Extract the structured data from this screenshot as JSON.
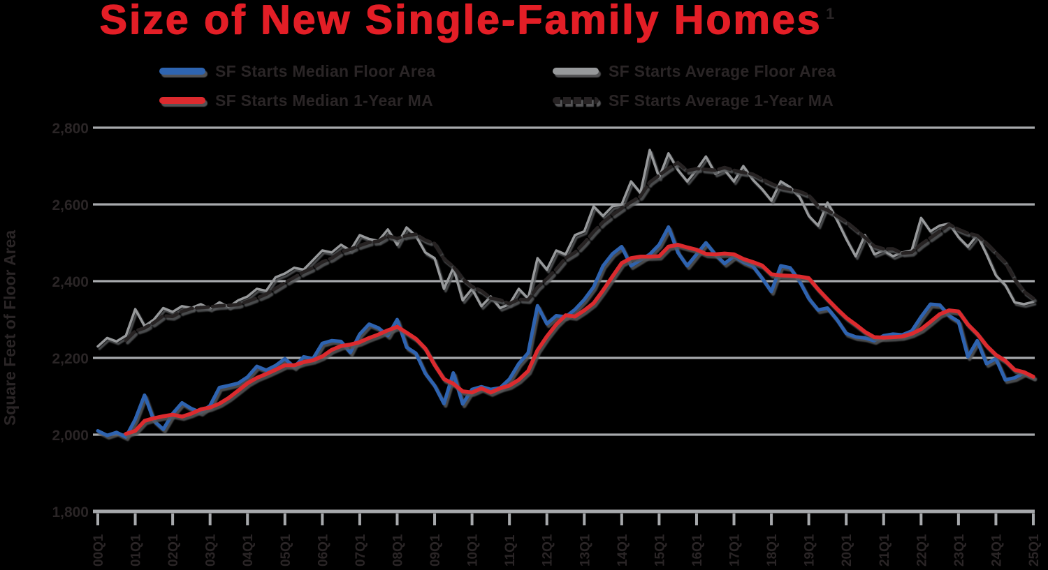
{
  "colors": {
    "background": "#000000",
    "title_red": "#e31e26",
    "median_blue": "#2e64b0",
    "median_ma_red": "#dc2a2e",
    "average_gray": "#97999b",
    "average_ma_dark": "#262223",
    "gridline_gray": "#a7a9ac",
    "axis_text_dark": "#2a2526"
  },
  "chart_data": {
    "type": "line",
    "title": "Size of New Single-Family Homes",
    "title_superscript": "1",
    "ylabel": "Square Feet of Floor Area",
    "ylim": [
      1800,
      2800
    ],
    "ytick_interval": 200,
    "ytick_values": [
      2800,
      2600,
      2400,
      2200,
      2000,
      1800
    ],
    "ytick_labels": [
      "2,800",
      "2,600",
      "2,400",
      "2,200",
      "2,000",
      "1,800"
    ],
    "grid": "horizontal",
    "legend_position": "top",
    "x_frequency": "quarterly",
    "x_start": "2000Q1",
    "x_end": "2025Q1",
    "xtick_labels": [
      "00Q1",
      "01Q1",
      "02Q1",
      "03Q1",
      "04Q1",
      "05Q1",
      "06Q1",
      "07Q1",
      "08Q1",
      "09Q1",
      "10Q1",
      "11Q1",
      "12Q1",
      "13Q1",
      "14Q1",
      "15Q1",
      "16Q1",
      "17Q1",
      "18Q1",
      "19Q1",
      "20Q1",
      "21Q1",
      "22Q1",
      "23Q1",
      "24Q1",
      "25Q1"
    ],
    "series": [
      {
        "name": "SF Starts Median Floor Area",
        "color": "#2e64b0",
        "line_style": "solid",
        "width": 5,
        "start_index": 0,
        "values": [
          2010,
          1998,
          2006,
          1994,
          2040,
          2103,
          2036,
          2014,
          2055,
          2083,
          2068,
          2058,
          2076,
          2123,
          2128,
          2134,
          2150,
          2178,
          2168,
          2180,
          2198,
          2176,
          2203,
          2198,
          2238,
          2245,
          2243,
          2214,
          2262,
          2288,
          2278,
          2258,
          2300,
          2228,
          2212,
          2160,
          2128,
          2081,
          2161,
          2080,
          2118,
          2125,
          2118,
          2122,
          2145,
          2185,
          2213,
          2336,
          2289,
          2310,
          2307,
          2326,
          2352,
          2385,
          2440,
          2471,
          2490,
          2440,
          2455,
          2470,
          2495,
          2541,
          2475,
          2440,
          2470,
          2500,
          2470,
          2446,
          2465,
          2450,
          2440,
          2408,
          2373,
          2440,
          2435,
          2400,
          2355,
          2325,
          2330,
          2300,
          2264,
          2255,
          2252,
          2245,
          2258,
          2262,
          2260,
          2270,
          2307,
          2340,
          2338,
          2310,
          2295,
          2203,
          2245,
          2185,
          2198,
          2143,
          2148,
          2161,
          2150
        ]
      },
      {
        "name": "SF Starts Median 1-Year MA",
        "color": "#dc2a2e",
        "line_style": "solid",
        "width": 5.5,
        "start_index": 3,
        "derived": "4-quarter moving average of SF Starts Median Floor Area",
        "values": [
          2002,
          2010,
          2036,
          2043,
          2048,
          2052,
          2047,
          2055,
          2066,
          2071,
          2081,
          2096,
          2115,
          2134,
          2148,
          2158,
          2169,
          2181,
          2181,
          2189,
          2194,
          2204,
          2221,
          2231,
          2235,
          2241,
          2252,
          2261,
          2272,
          2281,
          2266,
          2250,
          2225,
          2182,
          2145,
          2133,
          2113,
          2110,
          2121,
          2110,
          2121,
          2128,
          2143,
          2166,
          2220,
          2256,
          2287,
          2311,
          2308,
          2324,
          2343,
          2376,
          2412,
          2447,
          2460,
          2464,
          2464,
          2465,
          2490,
          2495,
          2488,
          2482,
          2471,
          2470,
          2472,
          2470,
          2458,
          2450,
          2441,
          2418,
          2415,
          2414,
          2412,
          2408,
          2379,
          2353,
          2328,
          2305,
          2287,
          2268,
          2254,
          2253,
          2254,
          2256,
          2263,
          2275,
          2294,
          2314,
          2324,
          2321,
          2287,
          2263,
          2232,
          2208,
          2193,
          2169,
          2163,
          2151
        ]
      },
      {
        "name": "SF Starts Average Floor Area",
        "color": "#97999b",
        "line_style": "solid",
        "width": 3.5,
        "start_index": 0,
        "values": [
          2230,
          2252,
          2243,
          2258,
          2327,
          2283,
          2300,
          2330,
          2320,
          2335,
          2330,
          2340,
          2328,
          2345,
          2333,
          2350,
          2360,
          2380,
          2375,
          2410,
          2420,
          2435,
          2430,
          2455,
          2480,
          2475,
          2495,
          2480,
          2520,
          2510,
          2505,
          2535,
          2495,
          2540,
          2518,
          2475,
          2460,
          2380,
          2435,
          2350,
          2380,
          2335,
          2360,
          2330,
          2340,
          2380,
          2355,
          2460,
          2430,
          2480,
          2470,
          2520,
          2530,
          2595,
          2570,
          2595,
          2600,
          2660,
          2630,
          2742,
          2670,
          2733,
          2690,
          2660,
          2690,
          2725,
          2680,
          2690,
          2660,
          2700,
          2665,
          2640,
          2610,
          2660,
          2645,
          2620,
          2570,
          2545,
          2605,
          2560,
          2510,
          2465,
          2520,
          2470,
          2480,
          2465,
          2475,
          2480,
          2565,
          2530,
          2545,
          2550,
          2515,
          2490,
          2520,
          2470,
          2415,
          2390,
          2345,
          2340,
          2346
        ]
      },
      {
        "name": "SF Starts Average 1-Year MA",
        "color": "#262223",
        "line_style": "dashed",
        "width": 5,
        "start_index": 3,
        "derived": "4-quarter moving average of SF Starts Average Floor Area",
        "values": [
          2246,
          2270,
          2278,
          2292,
          2310,
          2308,
          2321,
          2329,
          2331,
          2333,
          2336,
          2337,
          2339,
          2347,
          2356,
          2366,
          2381,
          2396,
          2410,
          2424,
          2435,
          2450,
          2460,
          2476,
          2483,
          2493,
          2501,
          2504,
          2518,
          2511,
          2519,
          2522,
          2507,
          2498,
          2458,
          2438,
          2406,
          2386,
          2375,
          2356,
          2351,
          2341,
          2353,
          2351,
          2384,
          2406,
          2431,
          2460,
          2475,
          2500,
          2529,
          2554,
          2573,
          2590,
          2606,
          2621,
          2658,
          2676,
          2694,
          2709,
          2688,
          2693,
          2691,
          2689,
          2696,
          2689,
          2683,
          2679,
          2666,
          2654,
          2644,
          2639,
          2634,
          2624,
          2595,
          2585,
          2570,
          2555,
          2535,
          2514,
          2491,
          2484,
          2484,
          2473,
          2475,
          2496,
          2513,
          2530,
          2548,
          2535,
          2525,
          2519,
          2499,
          2474,
          2449,
          2405,
          2373,
          2355
        ]
      }
    ]
  }
}
